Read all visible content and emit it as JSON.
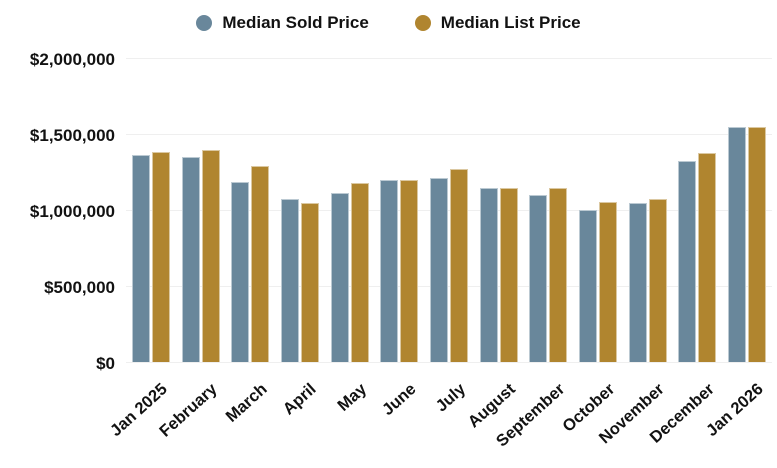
{
  "legend": {
    "items": [
      {
        "label": "Median Sold Price"
      },
      {
        "label": "Median List Price"
      }
    ]
  },
  "chart_data": {
    "type": "bar",
    "title": "",
    "xlabel": "",
    "ylabel": "",
    "categories": [
      "Jan 2025",
      "February",
      "March",
      "April",
      "May",
      "June",
      "July",
      "August",
      "September",
      "October",
      "November",
      "December",
      "Jan 2026"
    ],
    "series": [
      {
        "name": "Median Sold Price",
        "color": "#69879B",
        "values": [
          1360000,
          1350000,
          1185000,
          1070000,
          1110000,
          1200000,
          1210000,
          1145000,
          1100000,
          1000000,
          1045000,
          1320000,
          1545000
        ]
      },
      {
        "name": "Median List Price",
        "color": "#B0852F",
        "values": [
          1380000,
          1395000,
          1290000,
          1045000,
          1175000,
          1200000,
          1270000,
          1145000,
          1145000,
          1050000,
          1070000,
          1375000,
          1545000
        ]
      }
    ],
    "ylim": [
      0,
      2000000
    ],
    "yticks": [
      0,
      500000,
      1000000,
      1500000,
      2000000
    ],
    "ytick_labels": [
      "$0",
      "$500,000",
      "$1,000,000",
      "$1,500,000",
      "$2,000,000"
    ],
    "grid": true,
    "legend_position": "top",
    "text_color": "#121212",
    "gridline_color": "#efefef"
  }
}
